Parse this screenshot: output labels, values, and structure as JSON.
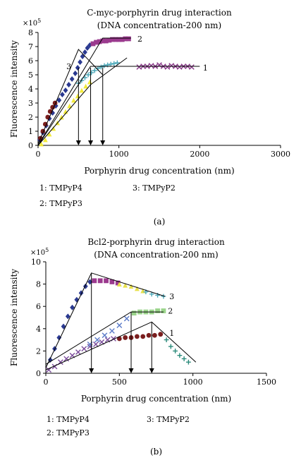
{
  "chart_data": [
    {
      "type": "scatter",
      "title": "C-myc-porphyrin drug interaction",
      "subtitle": "(DNA concentration-200 nm)",
      "xlabel": "Porphyrin drug concentration (nm)",
      "ylabel": "Fluorescence intensity",
      "y_multiplier": "×10",
      "y_multiplier_exp": "5",
      "xlim": [
        0,
        3000
      ],
      "ylim": [
        0,
        8
      ],
      "xticks": [
        "0",
        "1000",
        "2000",
        "3000"
      ],
      "yticks": [
        "0",
        "1",
        "2",
        "3",
        "4",
        "5",
        "6",
        "7",
        "8"
      ],
      "legend": [
        {
          "key": "1",
          "label": "TMPyP4"
        },
        {
          "key": "2",
          "label": "TMPyP3"
        },
        {
          "key": "3",
          "label": "TMPyP2"
        }
      ],
      "caption": "(a)",
      "series": [
        {
          "key": "dark-blue-diamond",
          "color": "#2a3990",
          "marker": "diamond",
          "x": [
            20,
            60,
            100,
            140,
            180,
            220,
            260,
            300,
            340,
            380,
            420,
            460,
            490,
            520,
            550,
            580,
            610,
            640
          ],
          "y": [
            0.4,
            0.9,
            1.4,
            1.9,
            2.3,
            2.8,
            3.2,
            3.6,
            3.9,
            4.3,
            4.7,
            5.1,
            5.5,
            5.9,
            6.3,
            6.6,
            6.9,
            7.1
          ]
        },
        {
          "key": "maroon-circle",
          "color": "#7a1e1e",
          "marker": "circle",
          "x": [
            30,
            60,
            90,
            120,
            150,
            180,
            210
          ],
          "y": [
            0.5,
            1.0,
            1.5,
            2.0,
            2.4,
            2.7,
            3.0
          ]
        },
        {
          "key": "yellow-triangle",
          "color": "#f2ea3a",
          "marker": "triangle",
          "x": [
            40,
            90,
            140,
            190,
            240,
            290,
            340,
            390,
            440,
            490,
            540,
            590,
            640
          ],
          "y": [
            0.1,
            0.4,
            0.8,
            1.2,
            1.6,
            2.0,
            2.4,
            2.8,
            3.2,
            3.5,
            3.9,
            4.2,
            4.5
          ]
        },
        {
          "key": "series-2-square",
          "color": "#9b3a8e",
          "marker": "square",
          "x": [
            680,
            720,
            760,
            800,
            840,
            880,
            920,
            960,
            1000,
            1040,
            1080,
            1120
          ],
          "y": [
            7.2,
            7.3,
            7.35,
            7.4,
            7.4,
            7.45,
            7.5,
            7.5,
            7.5,
            7.5,
            7.55,
            7.55
          ]
        },
        {
          "key": "series-3-plus",
          "color": "#4aa7b8",
          "marker": "plus",
          "x": [
            500,
            540,
            580,
            620,
            660,
            700,
            740,
            780,
            820,
            860,
            900,
            940,
            980
          ],
          "y": [
            4.4,
            4.6,
            4.8,
            5.0,
            5.15,
            5.3,
            5.45,
            5.55,
            5.65,
            5.7,
            5.75,
            5.8,
            5.85
          ]
        },
        {
          "key": "series-1-cross",
          "color": "#8a3a8a",
          "marker": "x",
          "x": [
            1250,
            1300,
            1350,
            1400,
            1450,
            1500,
            1550,
            1600,
            1650,
            1700,
            1750,
            1800,
            1850,
            1900
          ],
          "y": [
            5.55,
            5.6,
            5.6,
            5.65,
            5.6,
            5.7,
            5.6,
            5.55,
            5.65,
            5.6,
            5.55,
            5.6,
            5.6,
            5.55
          ]
        }
      ],
      "fit_lines": [
        {
          "x": [
            0,
            500,
            800
          ],
          "y": [
            0.1,
            6.8,
            5.0
          ]
        },
        {
          "x": [
            0,
            800,
            1150
          ],
          "y": [
            0,
            7.6,
            7.6
          ]
        },
        {
          "x": [
            0,
            650,
            1100
          ],
          "y": [
            0,
            4.3,
            6.2
          ]
        },
        {
          "x": [
            0,
            650,
            2000
          ],
          "y": [
            0,
            5.6,
            5.6
          ]
        }
      ],
      "arrows_x": [
        500,
        650,
        800
      ],
      "arrow_y_top": 5.5,
      "line_labels": [
        {
          "text": "2",
          "x": 1230,
          "y": 7.55
        },
        {
          "text": "3",
          "x": 350,
          "y": 5.6
        },
        {
          "text": "1",
          "x": 2040,
          "y": 5.5
        }
      ]
    },
    {
      "type": "scatter",
      "title": "Bcl2-porphyrin drug interaction",
      "subtitle": "(DNA concentration-200 nm)",
      "xlabel": "Porphyrin drug concentration (nm)",
      "ylabel": "Fluorescence intensity",
      "y_multiplier": "×10",
      "y_multiplier_exp": "5",
      "xlim": [
        0,
        1500
      ],
      "ylim": [
        0,
        10
      ],
      "xticks": [
        "0",
        "500",
        "1000",
        "1500"
      ],
      "yticks": [
        "0",
        "2",
        "4",
        "6",
        "8",
        "10"
      ],
      "legend": [
        {
          "key": "1",
          "label": "TMPyP4"
        },
        {
          "key": "2",
          "label": "TMPyP3"
        },
        {
          "key": "3",
          "label": "TMPyP2"
        }
      ],
      "caption": "(b)",
      "series": [
        {
          "key": "dark-blue-diamond",
          "color": "#2a3990",
          "marker": "diamond",
          "x": [
            30,
            60,
            90,
            120,
            150,
            180,
            210,
            240,
            270,
            300
          ],
          "y": [
            1.2,
            2.2,
            3.2,
            4.2,
            5.1,
            5.9,
            6.6,
            7.2,
            7.8,
            8.2
          ]
        },
        {
          "key": "magenta-square",
          "color": "#9b3a8e",
          "marker": "square",
          "x": [
            330,
            370,
            410,
            450,
            490
          ],
          "y": [
            8.3,
            8.3,
            8.3,
            8.2,
            8.1
          ]
        },
        {
          "key": "yellow-triangle",
          "color": "#e8e04a",
          "marker": "triangle",
          "x": [
            500,
            540,
            580,
            620,
            660
          ],
          "y": [
            8.0,
            7.9,
            7.8,
            7.6,
            7.4
          ]
        },
        {
          "key": "series-3-plus",
          "color": "#4aa7b8",
          "marker": "plus",
          "x": [
            680,
            720,
            760,
            800
          ],
          "y": [
            7.3,
            7.1,
            7.0,
            6.9
          ]
        },
        {
          "key": "purple-cross",
          "color": "#7a4a9a",
          "marker": "x",
          "x": [
            20,
            60,
            100,
            140,
            180,
            220,
            260,
            300,
            340,
            380,
            420,
            460
          ],
          "y": [
            0.3,
            0.6,
            1.0,
            1.3,
            1.6,
            1.9,
            2.2,
            2.4,
            2.6,
            2.8,
            3.0,
            3.1
          ]
        },
        {
          "key": "maroon-circle",
          "color": "#7a1e1e",
          "marker": "circle",
          "x": [
            500,
            540,
            580,
            620,
            660,
            700,
            740,
            780
          ],
          "y": [
            3.1,
            3.2,
            3.2,
            3.3,
            3.3,
            3.4,
            3.4,
            3.5
          ]
        },
        {
          "key": "teal-plus",
          "color": "#2a8a7a",
          "marker": "plus",
          "x": [
            820,
            850,
            880,
            910,
            940,
            970
          ],
          "y": [
            3.0,
            2.4,
            2.0,
            1.6,
            1.3,
            1.0
          ]
        },
        {
          "key": "series-2-light",
          "color": "#9ad48a",
          "marker": "square",
          "x": [
            600,
            640,
            680,
            720,
            760,
            800
          ],
          "y": [
            5.4,
            5.5,
            5.5,
            5.5,
            5.6,
            5.6
          ]
        },
        {
          "key": "blue-cross",
          "color": "#5a7ac8",
          "marker": "x",
          "x": [
            300,
            350,
            400,
            450,
            500,
            550
          ],
          "y": [
            2.6,
            3.0,
            3.4,
            3.8,
            4.3,
            4.9
          ]
        }
      ],
      "fit_lines": [
        {
          "x": [
            0,
            310,
            810
          ],
          "y": [
            0.5,
            9.0,
            6.9
          ]
        },
        {
          "x": [
            0,
            580,
            800
          ],
          "y": [
            0.8,
            5.5,
            5.5
          ]
        },
        {
          "x": [
            0,
            720,
            1020
          ],
          "y": [
            0.3,
            4.6,
            1.0
          ]
        }
      ],
      "arrows_x": [
        310,
        580,
        720
      ],
      "arrow_y_top": [
        9.0,
        5.5,
        4.6
      ],
      "line_labels": [
        {
          "text": "3",
          "x": 840,
          "y": 6.9
        },
        {
          "text": "2",
          "x": 830,
          "y": 5.6
        },
        {
          "text": "1",
          "x": 840,
          "y": 3.6
        }
      ]
    }
  ]
}
